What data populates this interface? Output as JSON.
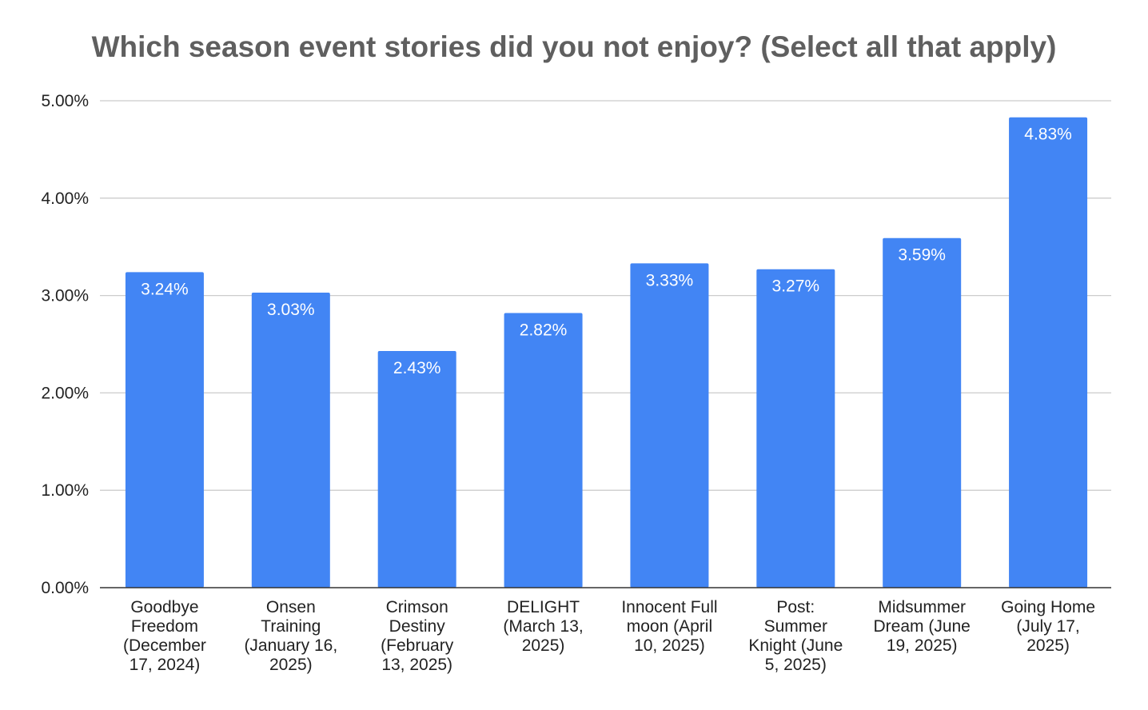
{
  "chart_data": {
    "type": "bar",
    "title": "Which season event stories did you not enjoy? (Select all that apply)",
    "xlabel": "",
    "ylabel": "",
    "ylim": [
      0,
      5
    ],
    "yticks": [
      0,
      1,
      2,
      3,
      4,
      5
    ],
    "ytick_labels": [
      "0.00%",
      "1.00%",
      "2.00%",
      "3.00%",
      "4.00%",
      "5.00%"
    ],
    "grid": true,
    "legend": "none",
    "bar_color": "#4285f4",
    "categories": [
      [
        "Goodbye",
        "Freedom",
        "(December",
        "17, 2024)"
      ],
      [
        "Onsen",
        "Training",
        "(January 16,",
        "2025)"
      ],
      [
        "Crimson",
        "Destiny",
        "(February",
        "13, 2025)"
      ],
      [
        "DELIGHT",
        "(March 13,",
        "2025)"
      ],
      [
        "Innocent Full",
        "moon (April",
        "10, 2025)"
      ],
      [
        "Post:",
        "Summer",
        "Knight (June",
        "5, 2025)"
      ],
      [
        "Midsummer",
        "Dream (June",
        "19, 2025)"
      ],
      [
        "Going Home",
        "(July 17,",
        "2025)"
      ]
    ],
    "values": [
      3.24,
      3.03,
      2.43,
      2.82,
      3.33,
      3.27,
      3.59,
      4.83
    ],
    "data_labels": [
      "3.24%",
      "3.03%",
      "2.43%",
      "2.82%",
      "3.33%",
      "3.27%",
      "3.59%",
      "4.83%"
    ]
  }
}
